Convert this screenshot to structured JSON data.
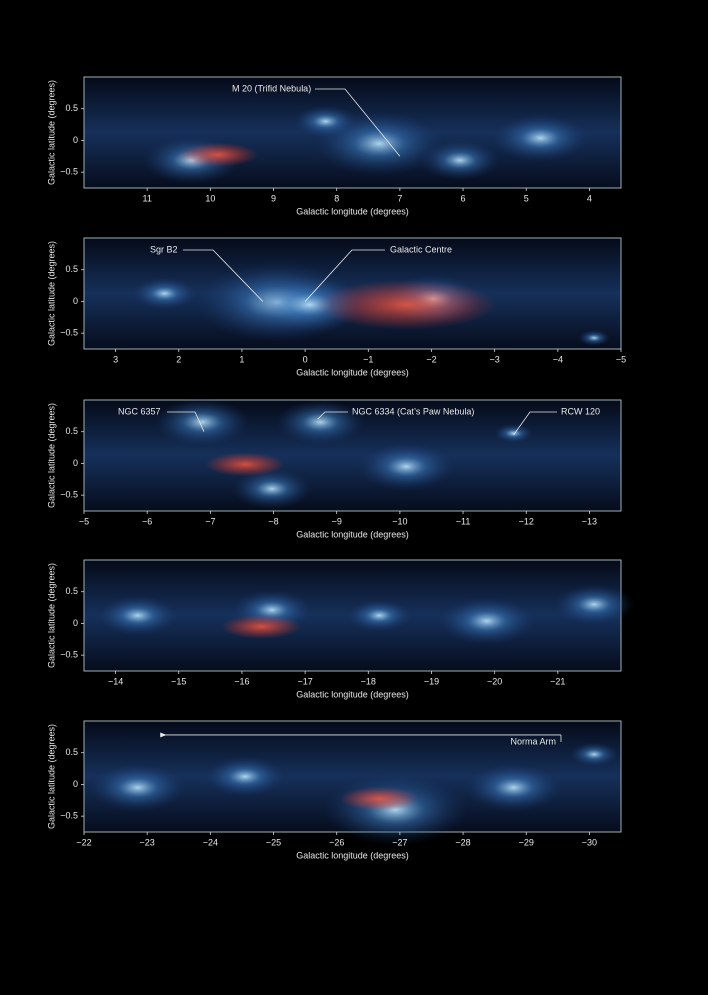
{
  "chart_data": [
    {
      "type": "image",
      "x_label": "Galactic longitude (degrees)",
      "y_label": "Galactic latitude (degrees)",
      "xlim": [
        12,
        3.5
      ],
      "ylim": [
        -0.75,
        1
      ],
      "xticks": [
        11,
        10,
        9,
        8,
        7,
        6,
        5,
        4
      ],
      "yticks": [
        0.5,
        0,
        {
          "value": -0.5,
          "label": "−0.5"
        }
      ],
      "annotations": [
        {
          "text": "M 20 (Trifid Nebula)",
          "x": 7.0,
          "y": -0.25
        }
      ]
    },
    {
      "type": "image",
      "x_label": "Galactic longitude (degrees)",
      "y_label": "Galactic latitude (degrees)",
      "xlim": [
        3.5,
        -5
      ],
      "ylim": [
        -0.75,
        1
      ],
      "xticks": [
        3,
        2,
        1,
        0,
        {
          "value": -1,
          "label": "−1"
        },
        {
          "value": -2,
          "label": "−2"
        },
        {
          "value": -3,
          "label": "−3"
        },
        {
          "value": -4,
          "label": "−4"
        },
        {
          "value": -5,
          "label": "−5"
        }
      ],
      "yticks": [
        0.5,
        0,
        {
          "value": -0.5,
          "label": "−0.5"
        }
      ],
      "annotations": [
        {
          "text": "Sgr B2",
          "x": 0.67,
          "y": 0
        },
        {
          "text": "Galactic Centre",
          "x": 0,
          "y": 0
        }
      ]
    },
    {
      "type": "image",
      "x_label": "Galactic longitude (degrees)",
      "y_label": "Galactic latitude (degrees)",
      "xlim": [
        -5,
        -13.5
      ],
      "ylim": [
        -0.75,
        1
      ],
      "xticks": [
        {
          "value": -5,
          "label": "−5"
        },
        {
          "value": -6,
          "label": "−6"
        },
        {
          "value": -7,
          "label": "−7"
        },
        {
          "value": -8,
          "label": "−8"
        },
        {
          "value": -9,
          "label": "−9"
        },
        {
          "value": -10,
          "label": "−10"
        },
        {
          "value": -11,
          "label": "−11"
        },
        {
          "value": -12,
          "label": "−12"
        },
        {
          "value": -13,
          "label": "−13"
        }
      ],
      "yticks": [
        0.5,
        0,
        {
          "value": -0.5,
          "label": "−0.5"
        }
      ],
      "annotations": [
        {
          "text": "NGC 6357",
          "x": -6.9,
          "y": 0.5
        },
        {
          "text": "NGC 6334 (Cat’s Paw Nebula)",
          "x": -8.7,
          "y": 0.7
        },
        {
          "text": "RCW 120",
          "x": -11.8,
          "y": 0.45
        }
      ]
    },
    {
      "type": "image",
      "x_label": "Galactic longitude (degrees)",
      "y_label": "Galactic latitude (degrees)",
      "xlim": [
        -13.5,
        -22
      ],
      "ylim": [
        -0.75,
        1
      ],
      "xticks": [
        {
          "value": -14,
          "label": "−14"
        },
        {
          "value": -15,
          "label": "−15"
        },
        {
          "value": -16,
          "label": "−16"
        },
        {
          "value": -17,
          "label": "−17"
        },
        {
          "value": -18,
          "label": "−18"
        },
        {
          "value": -19,
          "label": "−19"
        },
        {
          "value": -20,
          "label": "−20"
        },
        {
          "value": -21,
          "label": "−21"
        }
      ],
      "yticks": [
        0.5,
        0,
        {
          "value": -0.5,
          "label": "−0.5"
        }
      ],
      "annotations": []
    },
    {
      "type": "image",
      "x_label": "Galactic longitude (degrees)",
      "y_label": "Galactic latitude (degrees)",
      "xlim": [
        -22,
        -30.5
      ],
      "ylim": [
        -0.75,
        1
      ],
      "xticks": [
        {
          "value": -22,
          "label": "−22"
        },
        {
          "value": -23,
          "label": "−23"
        },
        {
          "value": -24,
          "label": "−24"
        },
        {
          "value": -25,
          "label": "−25"
        },
        {
          "value": -26,
          "label": "−26"
        },
        {
          "value": -27,
          "label": "−27"
        },
        {
          "value": -28,
          "label": "−28"
        },
        {
          "value": -29,
          "label": "−29"
        },
        {
          "value": -30,
          "label": "−30"
        }
      ],
      "yticks": [
        0.5,
        0,
        {
          "value": -0.5,
          "label": "−0.5"
        }
      ],
      "annotations": [
        {
          "text": "Norma Arm",
          "x": -29.55,
          "x_end": -23.2,
          "y": 0.78
        }
      ]
    }
  ]
}
